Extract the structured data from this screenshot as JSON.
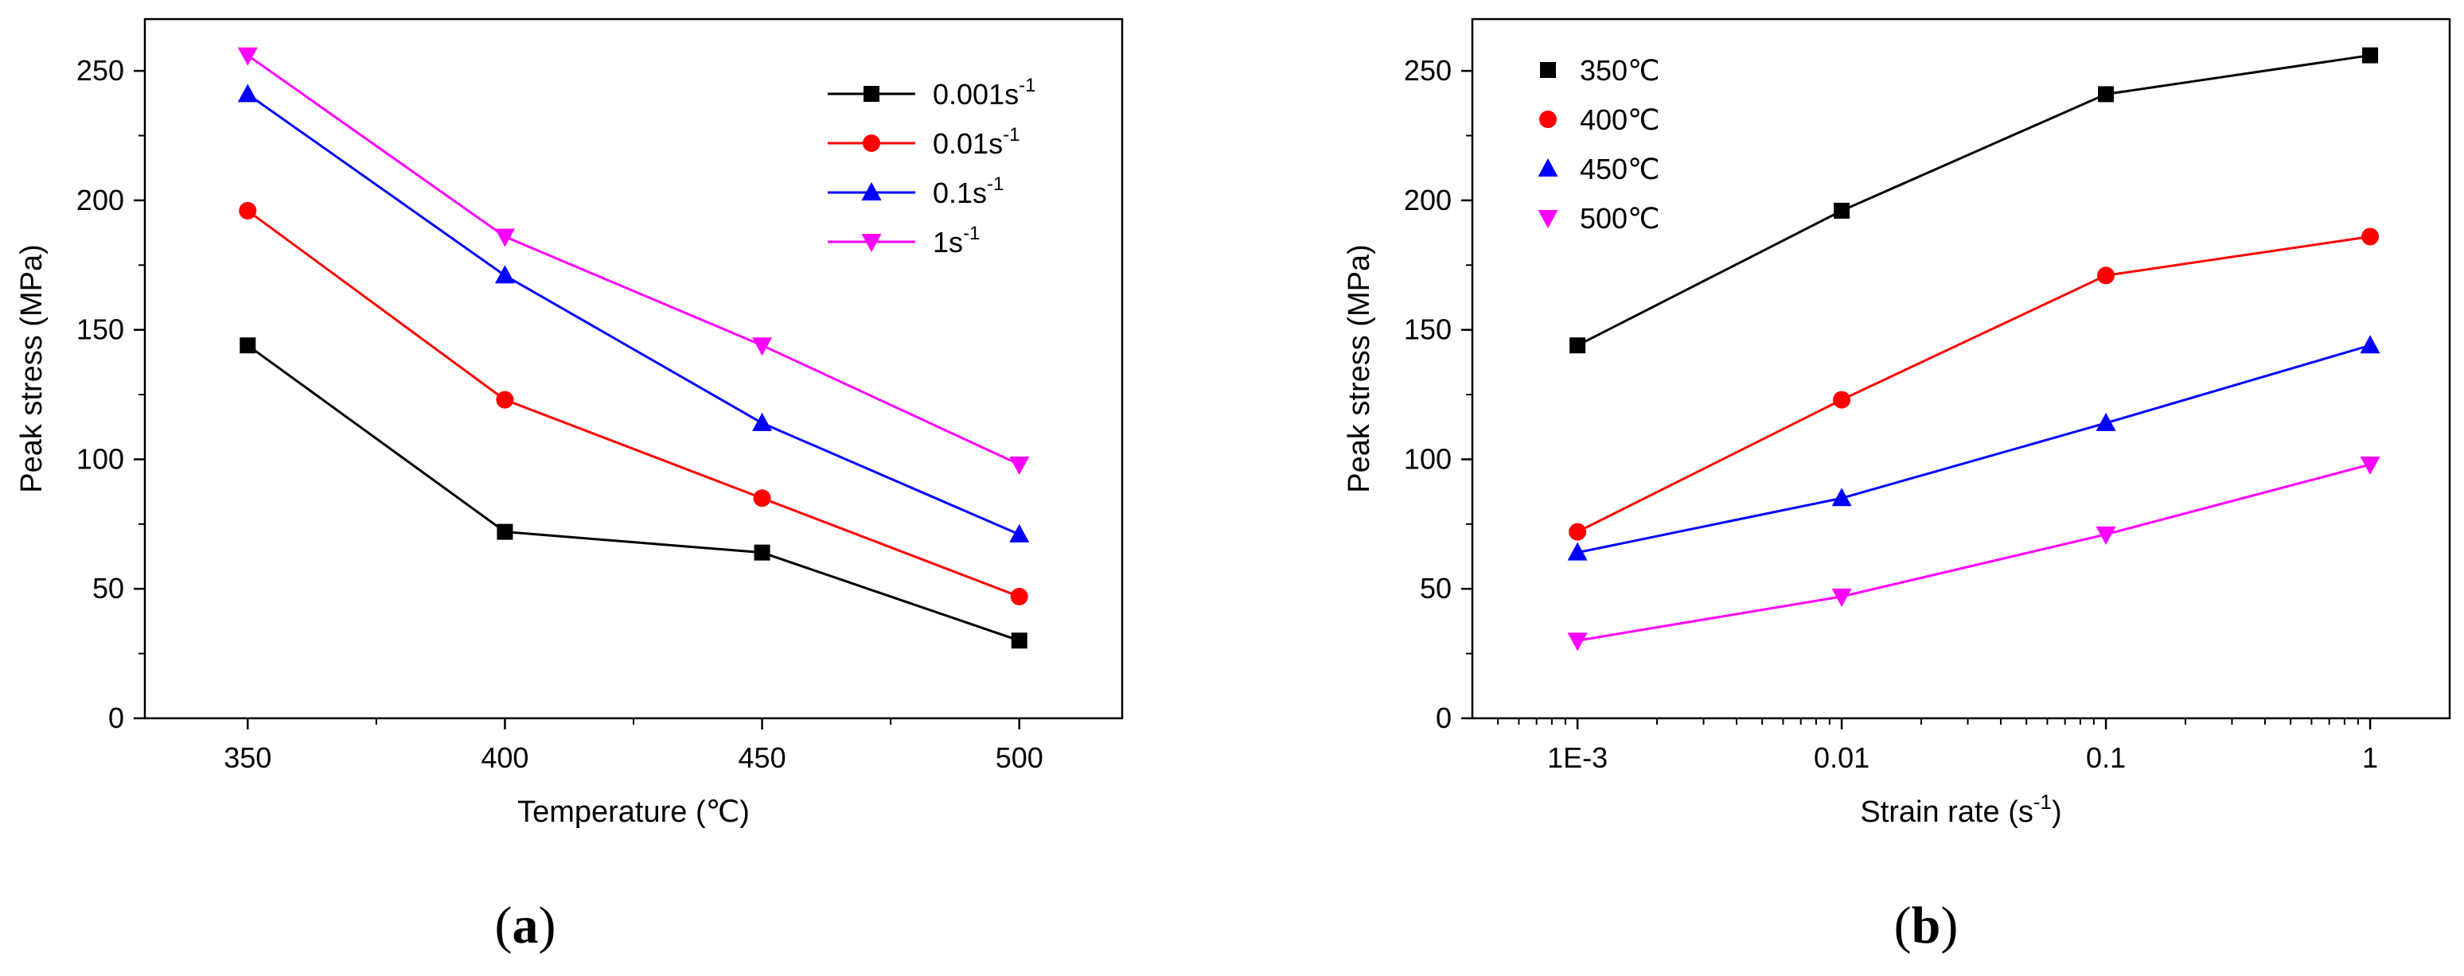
{
  "chart_data": [
    {
      "type": "line",
      "panel_label": "a",
      "xlabel": "Temperature (℃)",
      "ylabel": "Peak stress (MPa)",
      "x": [
        350,
        400,
        450,
        500
      ],
      "xlim": [
        330,
        520
      ],
      "ylim": [
        0,
        270
      ],
      "xticks": [
        "350",
        "400",
        "450",
        "500"
      ],
      "yticks": [
        "0",
        "50",
        "100",
        "150",
        "200",
        "250"
      ],
      "legend_position": "top-right",
      "series": [
        {
          "name": "0.001s",
          "sup": "-1",
          "color": "#000000",
          "marker": "square",
          "values": [
            144,
            72,
            64,
            30
          ]
        },
        {
          "name": "0.01s",
          "sup": "-1",
          "color": "#ff0000",
          "marker": "circle",
          "values": [
            196,
            123,
            85,
            47
          ]
        },
        {
          "name": "0.1s",
          "sup": "-1",
          "color": "#0000ff",
          "marker": "triangle-up",
          "values": [
            241,
            171,
            114,
            71
          ]
        },
        {
          "name": "1s",
          "sup": "-1",
          "color": "#ff00ff",
          "marker": "triangle-down",
          "values": [
            256,
            186,
            144,
            98
          ]
        }
      ]
    },
    {
      "type": "line",
      "panel_label": "b",
      "xlabel_main": "Strain rate (s",
      "xlabel_sup": "-1",
      "xlabel_end": ")",
      "ylabel": "Peak stress (MPa)",
      "x_scale": "log",
      "x": [
        0.001,
        0.01,
        0.1,
        1
      ],
      "xlim": [
        0.0004,
        2
      ],
      "ylim": [
        0,
        270
      ],
      "xticks": [
        "1E-3",
        "0.01",
        "0.1",
        "1"
      ],
      "yticks": [
        "0",
        "50",
        "100",
        "150",
        "200",
        "250"
      ],
      "legend_position": "top-left",
      "series": [
        {
          "name": "350℃",
          "color": "#000000",
          "marker": "square",
          "values": [
            144,
            196,
            241,
            256
          ]
        },
        {
          "name": "400℃",
          "color": "#ff0000",
          "marker": "circle",
          "values": [
            72,
            123,
            171,
            186
          ]
        },
        {
          "name": "450℃",
          "color": "#0000ff",
          "marker": "triangle-up",
          "values": [
            64,
            85,
            114,
            144
          ]
        },
        {
          "name": "500℃",
          "color": "#ff00ff",
          "marker": "triangle-down",
          "values": [
            30,
            47,
            71,
            98
          ]
        }
      ]
    }
  ]
}
